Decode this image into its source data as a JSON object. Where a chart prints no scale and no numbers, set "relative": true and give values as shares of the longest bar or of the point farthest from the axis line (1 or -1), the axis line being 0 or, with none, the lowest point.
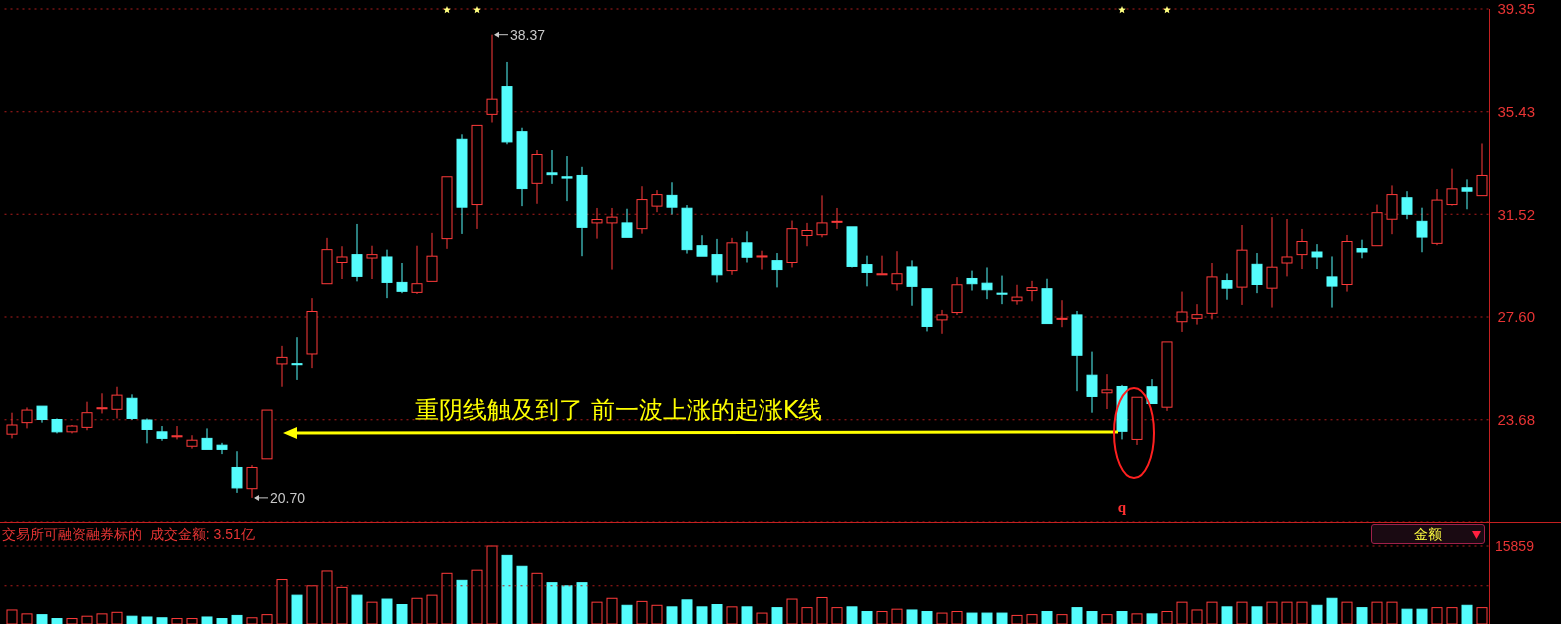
{
  "chart_data": [
    {
      "type": "candlestick",
      "categories": [
        null,
        null,
        null,
        null,
        null,
        null,
        null,
        null,
        null,
        null,
        null,
        null,
        null,
        null,
        null,
        null,
        null,
        null,
        null,
        null,
        null,
        null,
        null,
        null,
        null,
        null,
        null,
        null,
        null,
        null,
        null,
        null,
        null,
        null,
        null,
        null,
        null,
        null,
        null,
        null,
        null,
        null,
        null,
        null,
        null,
        null,
        null,
        null,
        null,
        null,
        null,
        null,
        null,
        null,
        null,
        null,
        null,
        null,
        null,
        null,
        null,
        null,
        null,
        null,
        null,
        null,
        null,
        null,
        null,
        null,
        null,
        null,
        null,
        null,
        null,
        null,
        null,
        null,
        null,
        null,
        null,
        null,
        null,
        null,
        null,
        null,
        null,
        null,
        null,
        null,
        null,
        null,
        null,
        null,
        null,
        null,
        null,
        null,
        null
      ],
      "ohlc": [
        [
          23.13,
          23.95,
          22.97,
          23.48
        ],
        [
          23.57,
          24.15,
          23.35,
          24.05
        ],
        [
          24.2,
          24.2,
          23.57,
          23.69
        ],
        [
          23.69,
          23.73,
          23.16,
          23.22
        ],
        [
          23.22,
          23.48,
          23.16,
          23.44
        ],
        [
          23.39,
          24.37,
          23.28,
          23.95
        ],
        [
          24.1,
          24.69,
          23.92,
          24.14
        ],
        [
          24.08,
          24.94,
          23.73,
          24.62
        ],
        [
          24.5,
          24.65,
          23.67,
          23.73
        ],
        [
          23.67,
          23.73,
          22.78,
          23.31
        ],
        [
          23.22,
          23.44,
          22.88,
          22.97
        ],
        [
          23.03,
          23.44,
          22.93,
          23.07
        ],
        [
          22.67,
          23.09,
          22.58,
          22.9
        ],
        [
          22.97,
          23.35,
          22.55,
          22.55
        ],
        [
          22.71,
          22.8,
          22.37,
          22.55
        ],
        [
          21.86,
          22.48,
          20.89,
          21.08
        ],
        [
          21.05,
          21.95,
          20.7,
          21.86
        ],
        [
          22.19,
          24.05,
          22.19,
          24.05
        ],
        [
          25.81,
          26.5,
          24.94,
          26.06
        ],
        [
          25.82,
          26.83,
          25.2,
          25.78
        ],
        [
          26.19,
          28.32,
          25.65,
          27.81
        ],
        [
          28.87,
          30.62,
          28.87,
          30.17
        ],
        [
          29.68,
          30.3,
          29.05,
          29.89
        ],
        [
          29.98,
          31.15,
          28.96,
          29.15
        ],
        [
          29.85,
          30.32,
          29.05,
          29.98
        ],
        [
          29.89,
          30.17,
          28.32,
          28.92
        ],
        [
          28.92,
          29.66,
          28.51,
          28.58
        ],
        [
          28.54,
          30.32,
          28.48,
          28.87
        ],
        [
          28.96,
          30.81,
          28.96,
          29.92
        ],
        [
          30.59,
          32.95,
          30.2,
          32.95
        ],
        [
          34.38,
          34.57,
          30.77,
          31.79
        ],
        [
          31.89,
          34.91,
          30.96,
          34.91
        ],
        [
          35.33,
          38.37,
          35.02,
          35.91
        ],
        [
          36.39,
          37.33,
          34.19,
          34.28
        ],
        [
          34.67,
          34.82,
          31.83,
          32.5
        ],
        [
          32.7,
          33.97,
          31.92,
          33.8
        ],
        [
          33.1,
          33.97,
          32.68,
          33.03
        ],
        [
          32.95,
          33.74,
          32.02,
          32.9
        ],
        [
          33.0,
          33.33,
          29.92,
          31.02
        ],
        [
          31.19,
          31.76,
          30.59,
          31.32
        ],
        [
          31.19,
          31.76,
          29.41,
          31.41
        ],
        [
          31.19,
          31.73,
          30.64,
          30.64
        ],
        [
          30.97,
          32.59,
          30.78,
          32.08
        ],
        [
          31.83,
          32.44,
          31.6,
          32.27
        ],
        [
          32.24,
          32.74,
          31.51,
          31.79
        ],
        [
          31.75,
          31.87,
          30.02,
          30.17
        ],
        [
          30.32,
          30.72,
          29.92,
          29.92
        ],
        [
          29.98,
          30.58,
          28.92,
          29.21
        ],
        [
          29.37,
          30.62,
          29.21,
          30.43
        ],
        [
          30.43,
          30.87,
          29.68,
          29.88
        ],
        [
          29.89,
          30.13,
          29.41,
          29.93
        ],
        [
          29.75,
          30.04,
          28.73,
          29.41
        ],
        [
          29.68,
          31.28,
          29.49,
          30.97
        ],
        [
          30.71,
          31.19,
          30.3,
          30.9
        ],
        [
          30.74,
          32.24,
          30.64,
          31.19
        ],
        [
          31.22,
          31.76,
          30.96,
          31.25
        ],
        [
          31.04,
          31.04,
          29.49,
          29.53
        ],
        [
          29.6,
          29.94,
          28.77,
          29.3
        ],
        [
          29.21,
          29.94,
          29.21,
          29.25
        ],
        [
          28.87,
          30.11,
          28.61,
          29.25
        ],
        [
          29.51,
          29.76,
          28.03,
          28.77
        ],
        [
          28.68,
          28.68,
          27.05,
          27.24
        ],
        [
          27.49,
          27.87,
          26.96,
          27.68
        ],
        [
          27.77,
          29.12,
          27.68,
          28.83
        ],
        [
          29.07,
          29.37,
          28.61,
          28.87
        ],
        [
          28.89,
          29.49,
          28.28,
          28.64
        ],
        [
          28.51,
          29.18,
          28.09,
          28.47
        ],
        [
          28.22,
          28.83,
          28.07,
          28.36
        ],
        [
          28.61,
          28.98,
          28.2,
          28.72
        ],
        [
          28.68,
          29.06,
          27.35,
          27.35
        ],
        [
          27.51,
          28.24,
          27.21,
          27.55
        ],
        [
          27.68,
          27.83,
          24.77,
          26.14
        ],
        [
          25.38,
          26.28,
          23.95,
          24.57
        ],
        [
          24.71,
          25.42,
          24.09,
          24.82
        ],
        [
          24.95,
          25.01,
          22.93,
          23.24
        ],
        [
          22.93,
          24.54,
          22.72,
          24.54
        ],
        [
          24.94,
          25.23,
          24.3,
          24.3
        ],
        [
          24.16,
          26.65,
          24.02,
          26.65
        ],
        [
          27.42,
          28.57,
          27.03,
          27.79
        ],
        [
          27.55,
          28.09,
          27.31,
          27.69
        ],
        [
          27.74,
          29.66,
          27.51,
          29.13
        ],
        [
          28.99,
          29.26,
          28.26,
          28.7
        ],
        [
          28.74,
          31.11,
          28.06,
          30.15
        ],
        [
          29.61,
          30.04,
          28.51,
          28.84
        ],
        [
          28.7,
          31.41,
          27.96,
          29.5
        ],
        [
          29.66,
          31.34,
          29.15,
          29.89
        ],
        [
          29.98,
          30.96,
          29.43,
          30.48
        ],
        [
          30.08,
          30.38,
          29.43,
          29.89
        ],
        [
          29.13,
          29.91,
          27.96,
          28.78
        ],
        [
          28.84,
          30.73,
          28.57,
          30.48
        ],
        [
          30.21,
          30.55,
          29.84,
          30.08
        ],
        [
          30.32,
          31.89,
          30.32,
          31.58
        ],
        [
          31.33,
          32.62,
          30.76,
          32.27
        ],
        [
          32.15,
          32.4,
          31.33,
          31.52
        ],
        [
          31.25,
          31.77,
          30.07,
          30.65
        ],
        [
          30.41,
          32.48,
          30.34,
          32.06
        ],
        [
          31.89,
          33.26,
          31.85,
          32.49
        ],
        [
          32.53,
          32.85,
          31.71,
          32.4
        ],
        [
          32.23,
          34.22,
          32.23,
          33.0
        ]
      ],
      "colors": [
        "#ff3b3b",
        "#ff3b3b",
        "#54fcfc",
        "#54fcfc",
        "#ff3b3b",
        "#ff3b3b",
        "#ff3b3b",
        "#ff3b3b",
        "#54fcfc",
        "#54fcfc",
        "#54fcfc",
        "#ff3b3b",
        "#ff3b3b",
        "#54fcfc",
        "#54fcfc",
        "#54fcfc",
        "#ff3b3b",
        "#ff3b3b",
        "#ff3b3b",
        "#54fcfc",
        "#ff3b3b",
        "#ff3b3b",
        "#ff3b3b",
        "#54fcfc",
        "#ff3b3b",
        "#54fcfc",
        "#54fcfc",
        "#ff3b3b",
        "#ff3b3b",
        "#ff3b3b",
        "#54fcfc",
        "#ff3b3b",
        "#ff3b3b",
        "#54fcfc",
        "#54fcfc",
        "#ff3b3b",
        "#54fcfc",
        "#54fcfc",
        "#54fcfc",
        "#ff3b3b",
        "#ff3b3b",
        "#54fcfc",
        "#ff3b3b",
        "#ff3b3b",
        "#54fcfc",
        "#54fcfc",
        "#54fcfc",
        "#54fcfc",
        "#ff3b3b",
        "#54fcfc",
        "#ff3b3b",
        "#54fcfc",
        "#ff3b3b",
        "#ff3b3b",
        "#ff3b3b",
        "#ff3b3b",
        "#54fcfc",
        "#54fcfc",
        "#ff3b3b",
        "#ff3b3b",
        "#54fcfc",
        "#54fcfc",
        "#ff3b3b",
        "#ff3b3b",
        "#54fcfc",
        "#54fcfc",
        "#54fcfc",
        "#ff3b3b",
        "#ff3b3b",
        "#54fcfc",
        "#ff3b3b",
        "#54fcfc",
        "#54fcfc",
        "#ff3b3b",
        "#54fcfc",
        "#ff3b3b",
        "#54fcfc",
        "#ff3b3b",
        "#ff3b3b",
        "#ff3b3b",
        "#ff3b3b",
        "#54fcfc",
        "#ff3b3b",
        "#54fcfc",
        "#ff3b3b",
        "#ff3b3b",
        "#ff3b3b",
        "#54fcfc",
        "#54fcfc",
        "#ff3b3b",
        "#54fcfc",
        "#ff3b3b",
        "#ff3b3b",
        "#54fcfc",
        "#54fcfc",
        "#ff3b3b",
        "#ff3b3b",
        "#54fcfc",
        "#ff3b3b"
      ],
      "ylim": [
        19.78,
        39.35
      ],
      "yticks": [
        23.68,
        {
          "value": 27.6,
          "label": "27.60"
        },
        31.52,
        35.43,
        39.35
      ],
      "grid": "y",
      "tick_labels": "y",
      "annotations": [
        "38.37",
        "20.70",
        "重阴线触及到了  前一波上涨的起涨K线",
        "q"
      ]
    },
    {
      "type": "bar",
      "relative": true,
      "title": "交易所可融资融券标的  成交金额: 3.51亿",
      "categories": [
        null,
        null,
        null,
        null,
        null,
        null,
        null,
        null,
        null,
        null,
        null,
        null,
        null,
        null,
        null,
        null,
        null,
        null,
        null,
        null,
        null,
        null,
        null,
        null,
        null,
        null,
        null,
        null,
        null,
        null,
        null,
        null,
        null,
        null,
        null,
        null,
        null,
        null,
        null,
        null,
        null,
        null,
        null,
        null,
        null,
        null,
        null,
        null,
        null,
        null,
        null,
        null,
        null,
        null,
        null,
        null,
        null,
        null,
        null,
        null,
        null,
        null,
        null,
        null,
        null,
        null,
        null,
        null,
        null,
        null,
        null,
        null,
        null,
        null,
        null,
        null,
        null,
        null,
        null,
        null,
        null,
        null,
        null,
        null,
        null,
        null,
        null,
        null,
        null,
        null,
        null,
        null,
        null,
        null,
        null,
        null,
        null,
        null,
        null
      ],
      "values": [
        0.18,
        0.13,
        0.12,
        0.07,
        0.07,
        0.1,
        0.13,
        0.15,
        0.1,
        0.09,
        0.08,
        0.07,
        0.07,
        0.09,
        0.07,
        0.11,
        0.08,
        0.12,
        0.57,
        0.37,
        0.49,
        0.68,
        0.47,
        0.37,
        0.28,
        0.32,
        0.25,
        0.33,
        0.37,
        0.65,
        0.56,
        0.69,
        1.0,
        0.88,
        0.74,
        0.65,
        0.53,
        0.49,
        0.53,
        0.28,
        0.33,
        0.24,
        0.29,
        0.24,
        0.22,
        0.31,
        0.22,
        0.25,
        0.22,
        0.22,
        0.14,
        0.21,
        0.32,
        0.21,
        0.34,
        0.21,
        0.22,
        0.16,
        0.16,
        0.19,
        0.18,
        0.16,
        0.14,
        0.16,
        0.14,
        0.14,
        0.14,
        0.11,
        0.12,
        0.16,
        0.12,
        0.21,
        0.16,
        0.12,
        0.16,
        0.13,
        0.13,
        0.16,
        0.28,
        0.18,
        0.28,
        0.22,
        0.28,
        0.22,
        0.28,
        0.28,
        0.28,
        0.24,
        0.33,
        0.28,
        0.21,
        0.28,
        0.28,
        0.19,
        0.19,
        0.21,
        0.21,
        0.24,
        0.21
      ],
      "colors": [
        "#ff3b3b",
        "#ff3b3b",
        "#54fcfc",
        "#54fcfc",
        "#ff3b3b",
        "#ff3b3b",
        "#ff3b3b",
        "#ff3b3b",
        "#54fcfc",
        "#54fcfc",
        "#54fcfc",
        "#ff3b3b",
        "#ff3b3b",
        "#54fcfc",
        "#54fcfc",
        "#54fcfc",
        "#ff3b3b",
        "#ff3b3b",
        "#ff3b3b",
        "#54fcfc",
        "#ff3b3b",
        "#ff3b3b",
        "#ff3b3b",
        "#54fcfc",
        "#ff3b3b",
        "#54fcfc",
        "#54fcfc",
        "#ff3b3b",
        "#ff3b3b",
        "#ff3b3b",
        "#54fcfc",
        "#ff3b3b",
        "#ff3b3b",
        "#54fcfc",
        "#54fcfc",
        "#ff3b3b",
        "#54fcfc",
        "#54fcfc",
        "#54fcfc",
        "#ff3b3b",
        "#ff3b3b",
        "#54fcfc",
        "#ff3b3b",
        "#ff3b3b",
        "#54fcfc",
        "#54fcfc",
        "#54fcfc",
        "#54fcfc",
        "#ff3b3b",
        "#54fcfc",
        "#ff3b3b",
        "#54fcfc",
        "#ff3b3b",
        "#ff3b3b",
        "#ff3b3b",
        "#ff3b3b",
        "#54fcfc",
        "#54fcfc",
        "#ff3b3b",
        "#ff3b3b",
        "#54fcfc",
        "#54fcfc",
        "#ff3b3b",
        "#ff3b3b",
        "#54fcfc",
        "#54fcfc",
        "#54fcfc",
        "#ff3b3b",
        "#ff3b3b",
        "#54fcfc",
        "#ff3b3b",
        "#54fcfc",
        "#54fcfc",
        "#ff3b3b",
        "#54fcfc",
        "#ff3b3b",
        "#54fcfc",
        "#ff3b3b",
        "#ff3b3b",
        "#ff3b3b",
        "#ff3b3b",
        "#54fcfc",
        "#ff3b3b",
        "#54fcfc",
        "#ff3b3b",
        "#ff3b3b",
        "#ff3b3b",
        "#54fcfc",
        "#54fcfc",
        "#ff3b3b",
        "#54fcfc",
        "#ff3b3b",
        "#ff3b3b",
        "#54fcfc",
        "#54fcfc",
        "#ff3b3b",
        "#ff3b3b",
        "#54fcfc",
        "#ff3b3b"
      ],
      "ref_lines": [
        {
          "axis": "y",
          "value": 1,
          "color": "#b01c1c",
          "line_style": "dotted"
        },
        {
          "axis": "y",
          "value": 0.49,
          "color": "#b01c1c",
          "line_style": "dotted"
        }
      ],
      "annotations": [
        "15859",
        "金额"
      ]
    }
  ]
}
